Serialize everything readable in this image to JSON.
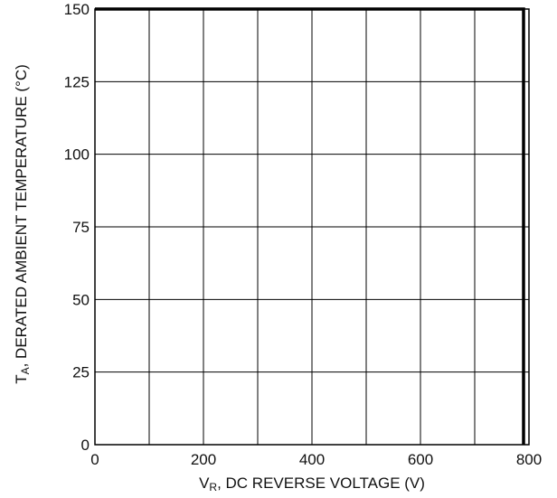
{
  "chart_data": {
    "type": "line",
    "title": "",
    "xlabel": {
      "main": "V",
      "sub": "R",
      "rest": ", DC REVERSE VOLTAGE (V)"
    },
    "ylabel": {
      "main": "T",
      "sub": "A",
      "rest": ", DERATED AMBIENT TEMPERATURE (°C)"
    },
    "xlim": [
      0,
      800
    ],
    "ylim": [
      0,
      150
    ],
    "x_ticks": [
      0,
      200,
      400,
      600,
      800
    ],
    "x_tick_labels": [
      "0",
      "200",
      "400",
      "600",
      "800"
    ],
    "x_minor_gridlines": [
      100,
      300,
      500,
      700
    ],
    "y_ticks": [
      0,
      25,
      50,
      75,
      100,
      125,
      150
    ],
    "y_tick_labels": [
      "0",
      "25",
      "50",
      "75",
      "100",
      "125",
      "150"
    ],
    "grid": true,
    "series": [
      {
        "x": [
          0,
          790,
          790
        ],
        "y": [
          150,
          150,
          0
        ]
      }
    ]
  }
}
